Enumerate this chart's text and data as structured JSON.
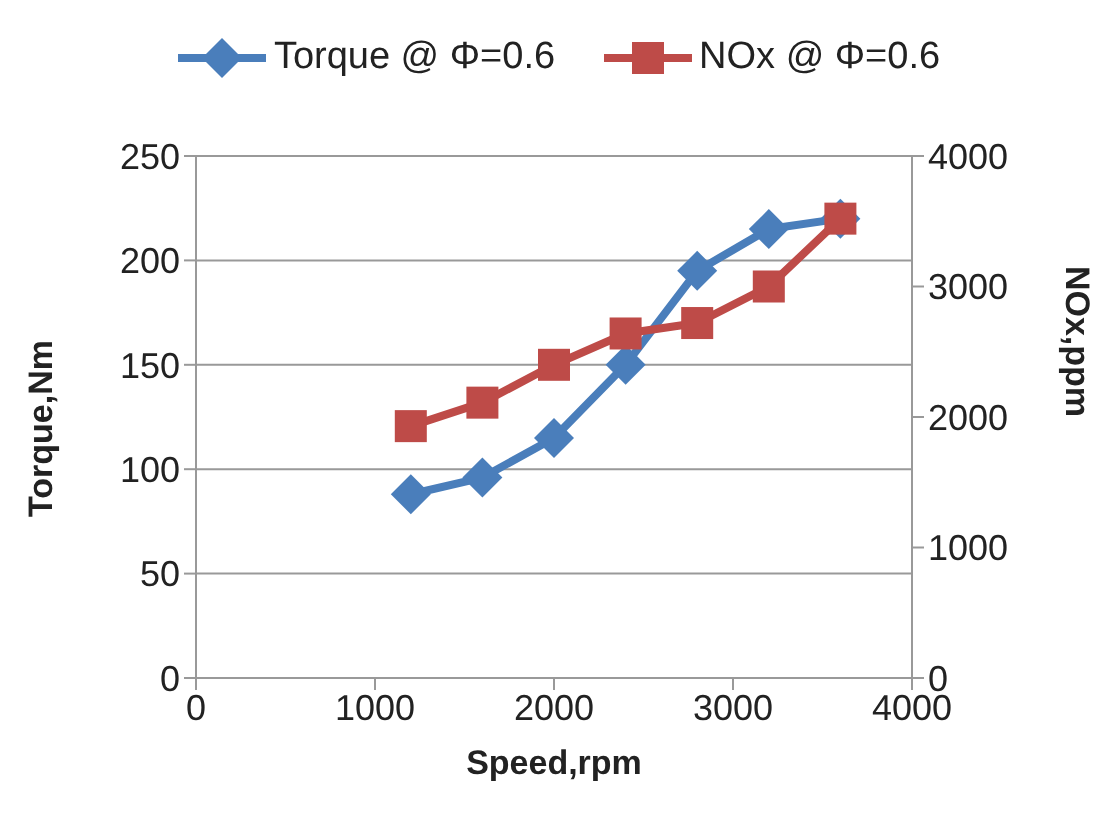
{
  "chart_data": {
    "type": "line",
    "xlabel": "Speed,rpm",
    "ylabel": "Torque,Nm",
    "y2label": "NOx,ppm",
    "x": [
      1200,
      1600,
      2000,
      2400,
      2800,
      3200,
      3600
    ],
    "series": [
      {
        "name": "Torque @ Φ=0.6",
        "color": "#4a7ebb",
        "marker": "diamond",
        "values": [
          88,
          96,
          115,
          150,
          195,
          215,
          220
        ]
      },
      {
        "name": "NOx @ Φ=0.6",
        "color": "#be4b48",
        "marker": "square",
        "axis": "y2",
        "values": [
          1930,
          2110,
          2400,
          2640,
          2720,
          3000,
          3520
        ]
      }
    ],
    "xlim": [
      0,
      4000
    ],
    "xticks": [
      0,
      1000,
      2000,
      3000,
      4000
    ],
    "ylim": [
      0,
      250
    ],
    "yticks": [
      0,
      50,
      100,
      150,
      200,
      250
    ],
    "y2lim": [
      0,
      4000
    ],
    "y2ticks": [
      0,
      1000,
      2000,
      3000,
      4000
    ],
    "grid": "y",
    "legend": "top",
    "line_style": "solid"
  }
}
